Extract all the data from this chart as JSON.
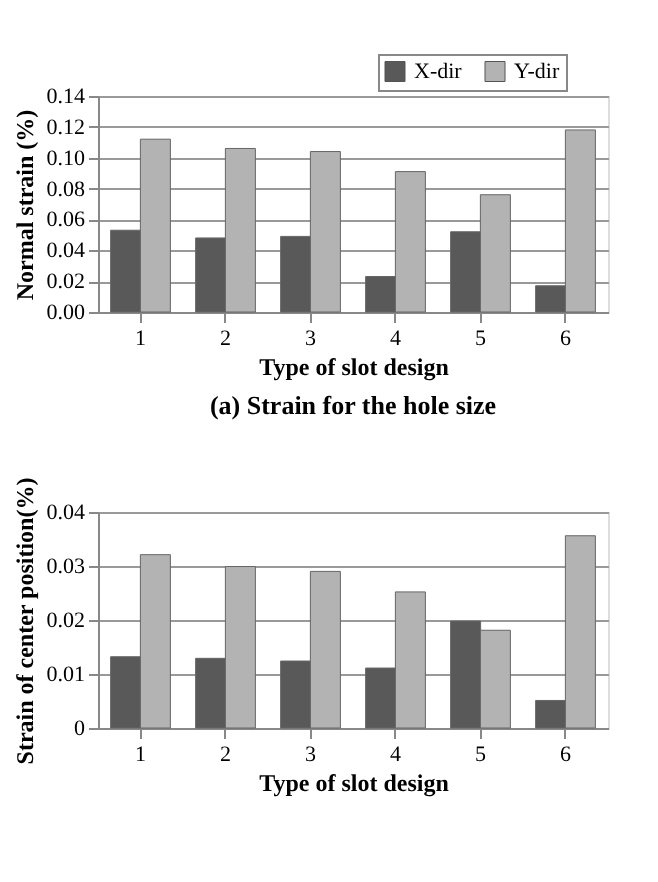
{
  "chart_data": [
    {
      "type": "bar",
      "title": "(a) Strain for the hole size",
      "xlabel": "Type of slot design",
      "ylabel": "Normal strain (%)",
      "categories": [
        "1",
        "2",
        "3",
        "4",
        "5",
        "6"
      ],
      "series": [
        {
          "name": "X-dir",
          "color": "#595959",
          "values": [
            0.053,
            0.048,
            0.049,
            0.023,
            0.052,
            0.017
          ]
        },
        {
          "name": "Y-dir",
          "color": "#b3b3b3",
          "values": [
            0.112,
            0.106,
            0.104,
            0.091,
            0.076,
            0.118
          ]
        }
      ],
      "ylim": [
        0,
        0.14
      ],
      "yticks": [
        {
          "value": 0,
          "label": "0.00"
        },
        {
          "value": 0.02,
          "label": "0.02"
        },
        {
          "value": 0.04,
          "label": "0.04"
        },
        {
          "value": 0.06,
          "label": "0.06"
        },
        {
          "value": 0.08,
          "label": "0.08"
        },
        {
          "value": 0.1,
          "label": "0.10"
        },
        {
          "value": 0.12,
          "label": "0.12"
        },
        {
          "value": 0.14,
          "label": "0.14"
        }
      ],
      "grid": "y",
      "legend": "top right"
    },
    {
      "type": "bar",
      "xlabel": "Type of slot design",
      "ylabel": "Strain of center position(%)",
      "categories": [
        "1",
        "2",
        "3",
        "4",
        "5",
        "6"
      ],
      "series": [
        {
          "name": "X-dir",
          "color": "#595959",
          "values": [
            0.0132,
            0.0129,
            0.0124,
            0.0111,
            0.0198,
            0.0051
          ]
        },
        {
          "name": "Y-dir",
          "color": "#b3b3b3",
          "values": [
            0.0321,
            0.0299,
            0.029,
            0.0252,
            0.0181,
            0.0356
          ]
        }
      ],
      "ylim": [
        0,
        0.04
      ],
      "yticks": [
        0,
        0.01,
        0.02,
        0.03,
        0.04
      ],
      "grid": "y",
      "legend": "top right"
    }
  ]
}
